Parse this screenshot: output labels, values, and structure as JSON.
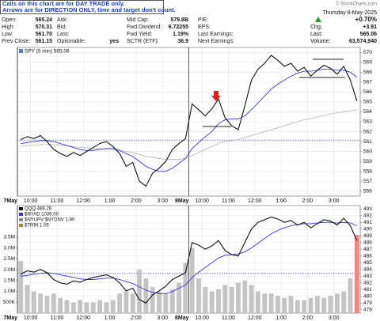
{
  "notice": [
    "Calls on this chart are for DAY TRADE only.",
    "Arrows are for DIRECTION ONLY, time and target don't count."
  ],
  "quote": {
    "rows": [
      [
        {
          "label": "Open:",
          "value": "565.24"
        },
        {
          "label": "Ask:"
        },
        {
          "label": "Mid Cap:",
          "value": "579.8B"
        },
        {
          "label": "P/E:"
        }
      ],
      [
        {
          "label": "High:",
          "value": "570.31"
        },
        {
          "label": "Bid:"
        },
        {
          "label": "Fwd Dividend:",
          "value": "6.72255"
        },
        {
          "label": "EPS:"
        }
      ],
      [
        {
          "label": "Low:",
          "value": "561.70"
        },
        {
          "label": "Last:"
        },
        {
          "label": "Fwd Yield:",
          "value": "1.19%"
        },
        {
          "label": "Last Earnings:"
        }
      ],
      [
        {
          "label": "Prev Close:",
          "value": "561.15"
        },
        {
          "label": "Optionable:",
          "value": "yes"
        },
        {
          "label": "SCTR (ETF):",
          "value": "36.9"
        },
        {
          "label": "Next Earnings:"
        }
      ]
    ]
  },
  "summary": {
    "site": "© StockCharts.com",
    "date": "Thursday 8-May-2025",
    "chg_pct": "+0.70%",
    "chg_label": "Chg:",
    "chg": "+3.91",
    "last_label": "Last:",
    "last": "565.06",
    "volume_label": "Volume:",
    "volume": "63,574,940"
  },
  "chart_data": [
    {
      "type": "line",
      "title": "SPY (5 min) 565.06",
      "categories": [
        "7May",
        null,
        "10:00",
        null,
        null,
        null,
        "11:00",
        null,
        null,
        null,
        "12:00",
        null,
        null,
        null,
        "1:00",
        null,
        null,
        null,
        "2:00",
        null,
        null,
        null,
        "3:00",
        null,
        null,
        null,
        "8May",
        null,
        "10:00",
        null,
        null,
        null,
        "11:00",
        null,
        null,
        null,
        "12:00",
        null,
        null,
        null,
        "1:00",
        null,
        null,
        null,
        "2:00",
        null,
        null,
        null,
        "3:00",
        null,
        null,
        null
      ],
      "series": [
        {
          "color": "#bbbbbb",
          "values": [
            560.5,
            560.6,
            560.6,
            560.7,
            560.7,
            560.7,
            560.6,
            560.6,
            560.5,
            560.4,
            560.4,
            560.3,
            560.3,
            560.2,
            560.2,
            560.1,
            560.0,
            559.9,
            559.7,
            559.5,
            559.4,
            559.3,
            559.2,
            559.2,
            559.2,
            559.3,
            559.6,
            559.9,
            560.2,
            560.5,
            560.8,
            561.0,
            561.1,
            561.2,
            561.4,
            561.6,
            561.8,
            562.0,
            562.2,
            562.4,
            562.6,
            562.8,
            563.0,
            563.2,
            563.3,
            563.5,
            563.6,
            563.8,
            563.9,
            564.0,
            564.1,
            564.2
          ]
        },
        {
          "color": "#3a3ad0",
          "values": [
            560.8,
            560.9,
            561.0,
            561.1,
            561.1,
            561.0,
            560.8,
            560.6,
            560.4,
            560.2,
            560.1,
            560.1,
            560.2,
            560.3,
            560.3,
            560.1,
            559.8,
            559.5,
            559.0,
            558.5,
            558.2,
            558.0,
            558.0,
            558.3,
            558.8,
            559.3,
            560.3,
            560.9,
            561.5,
            562.0,
            562.8,
            563.2,
            563.3,
            563.3,
            563.6,
            564.2,
            564.9,
            565.6,
            566.3,
            566.8,
            567.2,
            567.6,
            567.9,
            568.1,
            568.1,
            568.2,
            568.3,
            568.3,
            568.2,
            568.2,
            568.0,
            567.5
          ]
        },
        {
          "color": "#111111",
          "values": [
            561.2,
            561.5,
            561.3,
            561.6,
            561.0,
            560.2,
            559.8,
            559.5,
            559.9,
            559.6,
            560.0,
            560.4,
            560.8,
            561.0,
            560.5,
            559.8,
            558.5,
            558.9,
            557.0,
            556.5,
            557.8,
            558.3,
            559.0,
            560.2,
            560.8,
            561.3,
            564.8,
            564.2,
            563.6,
            564.3,
            565.3,
            563.4,
            562.6,
            562.2,
            564.6,
            567.2,
            568.3,
            568.9,
            569.7,
            569.2,
            568.6,
            568.9,
            568.1,
            568.5,
            567.6,
            568.2,
            568.7,
            568.4,
            567.8,
            568.6,
            567.2,
            565.1
          ]
        }
      ],
      "ylim": [
        555.5,
        570.5
      ],
      "yticks": [
        556,
        557,
        558,
        559,
        560,
        561,
        562,
        563,
        564,
        565,
        566,
        567,
        568,
        569,
        570
      ],
      "reference_line": 561.15,
      "reference_color": "#2233aa",
      "grid": true
    },
    {
      "type": "line",
      "legend_items": [
        "QQQ 488.29",
        "$NYAD 1036.00",
        "$NYUPV:$NYDNV 1.90",
        "$TRIN 1.05"
      ],
      "categories": [
        "7May",
        null,
        "10:00",
        null,
        null,
        null,
        "11:00",
        null,
        null,
        null,
        "12:00",
        null,
        null,
        null,
        "1:00",
        null,
        null,
        null,
        "2:00",
        null,
        null,
        null,
        "3:00",
        null,
        null,
        null,
        "8May",
        null,
        "10:00",
        null,
        null,
        null,
        "11:00",
        null,
        null,
        null,
        "12:00",
        null,
        null,
        null,
        "1:00",
        null,
        null,
        null,
        "2:00",
        null,
        null,
        null,
        "3:00",
        null,
        null,
        null
      ],
      "series": [
        {
          "kind": "bar",
          "axis": "y2",
          "color": "#c4c4c4",
          "last_color": "#f08888",
          "values": [
            2400000,
            1300000,
            1000000,
            900000,
            800000,
            900000,
            700000,
            600000,
            500000,
            600000,
            500000,
            500000,
            600000,
            500000,
            600000,
            900000,
            1000000,
            900000,
            2000000,
            1600000,
            1200000,
            1000000,
            900000,
            1100000,
            1400000,
            2300000,
            3000000,
            1600000,
            1200000,
            1000000,
            1100000,
            1300000,
            1200000,
            1400000,
            1500000,
            1300000,
            1000000,
            900000,
            900000,
            800000,
            700000,
            800000,
            600000,
            600000,
            700000,
            800000,
            700000,
            800000,
            900000,
            1000000,
            1600000,
            3600000
          ]
        },
        {
          "color": "#3a3ad0",
          "values": [
            483.0,
            483.1,
            483.3,
            483.4,
            483.5,
            483.4,
            483.2,
            483.0,
            482.8,
            482.6,
            482.5,
            482.5,
            482.6,
            482.7,
            482.7,
            482.5,
            482.2,
            481.9,
            481.4,
            480.9,
            480.6,
            480.4,
            480.4,
            480.7,
            481.2,
            481.7,
            482.8,
            483.6,
            484.3,
            485.0,
            485.7,
            486.1,
            486.2,
            486.3,
            486.6,
            487.2,
            487.9,
            488.6,
            489.3,
            489.8,
            490.2,
            490.5,
            490.7,
            490.8,
            490.8,
            490.9,
            491.0,
            491.0,
            490.9,
            491.0,
            490.9,
            490.5
          ]
        },
        {
          "color": "#111111",
          "values": [
            483.3,
            483.8,
            483.6,
            484.0,
            483.5,
            482.5,
            482.0,
            481.8,
            482.3,
            482.1,
            482.5,
            482.8,
            483.0,
            483.2,
            482.8,
            482.0,
            480.8,
            481.2,
            479.5,
            479.0,
            480.2,
            480.8,
            481.5,
            482.5,
            483.0,
            483.5,
            488.0,
            487.6,
            487.0,
            487.5,
            488.3,
            486.8,
            486.2,
            486.0,
            488.0,
            490.0,
            491.0,
            491.4,
            491.8,
            491.5,
            491.0,
            491.3,
            490.6,
            491.0,
            490.2,
            490.8,
            491.4,
            491.2,
            490.6,
            491.6,
            490.5,
            488.3
          ]
        }
      ],
      "ylim": [
        477.5,
        493.5
      ],
      "yticks": [
        478,
        479,
        480,
        481,
        482,
        483,
        484,
        485,
        486,
        487,
        488,
        489,
        490,
        491,
        492,
        493
      ],
      "y2lim": [
        0,
        4950000
      ],
      "y2ticks": [
        {
          "value": 500000,
          "label": "500K"
        },
        {
          "value": 1000000,
          "label": "1.0M"
        },
        {
          "value": 1500000,
          "label": "1.5M"
        },
        {
          "value": 2000000,
          "label": "2.0M"
        },
        {
          "value": 2500000,
          "label": "2.5M"
        },
        {
          "value": 3000000,
          "label": "3.0M"
        },
        {
          "value": 3500000,
          "label": "3.5M"
        }
      ],
      "reference_line": 483.4,
      "reference_color": "#2233aa",
      "grid": true
    }
  ]
}
